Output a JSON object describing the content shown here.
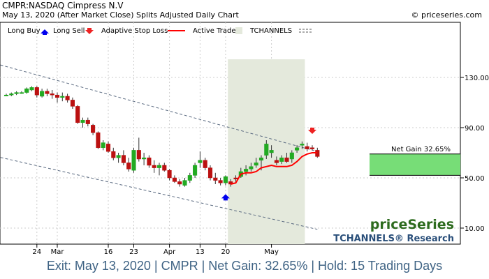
{
  "header": {
    "symbol_line": "CMPR:NASDAQ Cimpress N.V",
    "date_line": "May 13, 2020 (After Market Close)  Splits Adjusted Daily Chart",
    "copyright": "© priceseries.com"
  },
  "legend": {
    "long_buy": "Long Buy",
    "long_sell": "Long Sell",
    "adaptive_stop": "Adaptive Stop Loss",
    "active_trade": "Active Trade",
    "tchannels": "TCHANNELS"
  },
  "brand": {
    "name": "priceSeries",
    "research": "TCHANNELS® Research"
  },
  "net_gain_label": "Net Gain 32.65%",
  "footer": "Exit: May 13, 2020 | CMPR | Net Gain: 32.65% | Hold: 15 Trading Days",
  "colors": {
    "up_candle": "#22aa22",
    "down_candle": "#bb1111",
    "stop_line": "#ff0000",
    "trade_zone": "#e4e9dc",
    "gain_box": "#77dd77",
    "buy_arrow": "#0000ee",
    "sell_arrow": "#ee2222",
    "footer_text": "#3f6384",
    "brand_text": "#2d6b1e",
    "research_text": "#2a4f7a"
  },
  "chart_data": {
    "type": "candlestick",
    "y_ticks": [
      10,
      50,
      90,
      130
    ],
    "y_tick_labels": [
      "10.00",
      "50.00",
      "90.00",
      "130.00"
    ],
    "x_ticks": [
      {
        "label": "24",
        "index": 6
      },
      {
        "label": "Mar",
        "index": 10
      },
      {
        "label": "16",
        "index": 20
      },
      {
        "label": "23",
        "index": 25
      },
      {
        "label": "Apr",
        "index": 32
      },
      {
        "label": "13",
        "index": 38
      },
      {
        "label": "20",
        "index": 43
      },
      {
        "label": "May",
        "index": 52
      }
    ],
    "candles": [
      [
        116,
        117,
        115,
        116
      ],
      [
        116,
        118,
        115,
        117
      ],
      [
        117,
        119,
        116,
        118
      ],
      [
        118,
        119,
        117,
        118
      ],
      [
        118,
        122,
        117,
        121
      ],
      [
        120,
        123,
        119,
        122
      ],
      [
        122,
        123,
        114,
        116
      ],
      [
        115,
        121,
        114,
        119
      ],
      [
        119,
        121,
        115,
        117
      ],
      [
        117,
        120,
        113,
        116
      ],
      [
        116,
        118,
        110,
        114
      ],
      [
        114,
        118,
        111,
        115
      ],
      [
        115,
        117,
        110,
        112
      ],
      [
        112,
        114,
        105,
        107
      ],
      [
        107,
        108,
        93,
        94
      ],
      [
        94,
        98,
        90,
        96
      ],
      [
        96,
        98,
        91,
        93
      ],
      [
        92,
        93,
        84,
        86
      ],
      [
        86,
        87,
        73,
        74
      ],
      [
        74,
        80,
        72,
        78
      ],
      [
        77,
        79,
        70,
        71
      ],
      [
        71,
        74,
        64,
        66
      ],
      [
        66,
        70,
        62,
        68
      ],
      [
        68,
        72,
        60,
        62
      ],
      [
        62,
        66,
        55,
        57
      ],
      [
        56,
        74,
        54,
        72
      ],
      [
        72,
        82,
        63,
        65
      ],
      [
        65,
        70,
        60,
        66
      ],
      [
        66,
        68,
        58,
        60
      ],
      [
        60,
        64,
        54,
        58
      ],
      [
        58,
        62,
        52,
        60
      ],
      [
        60,
        62,
        55,
        56
      ],
      [
        56,
        57,
        48,
        50
      ],
      [
        50,
        52,
        46,
        47
      ],
      [
        47,
        49,
        43,
        45
      ],
      [
        44,
        50,
        43,
        48
      ],
      [
        48,
        54,
        46,
        52
      ],
      [
        52,
        62,
        50,
        60
      ],
      [
        62,
        71,
        58,
        64
      ],
      [
        64,
        66,
        56,
        58
      ],
      [
        58,
        60,
        48,
        50
      ],
      [
        50,
        54,
        45,
        48
      ],
      [
        48,
        50,
        44,
        46
      ],
      [
        46,
        52,
        44,
        51
      ],
      [
        47,
        49,
        43,
        45
      ],
      [
        50,
        52,
        46,
        49
      ],
      [
        51,
        58,
        50,
        55
      ],
      [
        55,
        60,
        52,
        57
      ],
      [
        57,
        62,
        55,
        59
      ],
      [
        60,
        66,
        58,
        62
      ],
      [
        64,
        68,
        56,
        66
      ],
      [
        68,
        80,
        65,
        77
      ],
      [
        70,
        76,
        66,
        72
      ],
      [
        64,
        67,
        60,
        62
      ],
      [
        63,
        68,
        61,
        66
      ],
      [
        66,
        70,
        62,
        63
      ],
      [
        65,
        72,
        62,
        70
      ],
      [
        72,
        76,
        70,
        74
      ],
      [
        76,
        79,
        73,
        77
      ],
      [
        75,
        78,
        71,
        73
      ],
      [
        74,
        76,
        72,
        73
      ],
      [
        72,
        74,
        66,
        67
      ]
    ],
    "stop_loss": [
      {
        "index": 44,
        "value": 45
      },
      {
        "index": 45,
        "value": 46
      },
      {
        "index": 46,
        "value": 53
      },
      {
        "index": 47,
        "value": 54
      },
      {
        "index": 48,
        "value": 54
      },
      {
        "index": 49,
        "value": 55
      },
      {
        "index": 50,
        "value": 58
      },
      {
        "index": 51,
        "value": 59
      },
      {
        "index": 52,
        "value": 60
      },
      {
        "index": 53,
        "value": 59
      },
      {
        "index": 54,
        "value": 59
      },
      {
        "index": 55,
        "value": 59
      },
      {
        "index": 56,
        "value": 60
      },
      {
        "index": 57,
        "value": 63
      },
      {
        "index": 58,
        "value": 67
      },
      {
        "index": 59,
        "value": 69
      },
      {
        "index": 60,
        "value": 70
      },
      {
        "index": 61,
        "value": 70
      }
    ],
    "trade_zone_index": [
      44,
      58
    ],
    "buy_signal": {
      "index": 43,
      "value": 37
    },
    "sell_signal": {
      "index": 60,
      "value": 85
    },
    "gain_box_range": [
      52,
      69
    ],
    "channel_upper": [
      {
        "index": -3,
        "value": 142
      },
      {
        "index": 61,
        "value": 71
      }
    ],
    "channel_lower": [
      {
        "index": -3,
        "value": 68
      },
      {
        "index": 61,
        "value": 9
      }
    ]
  }
}
